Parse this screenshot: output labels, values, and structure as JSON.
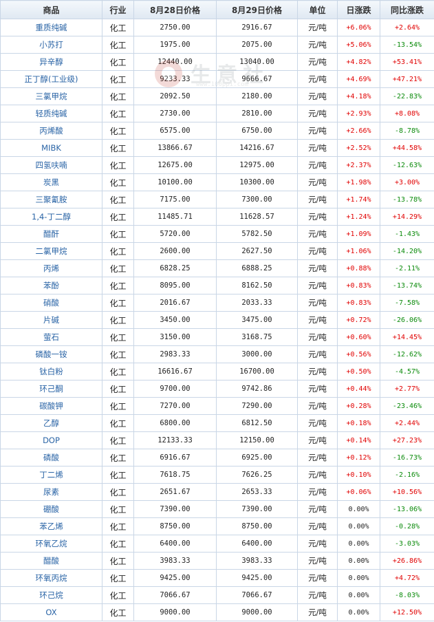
{
  "headers": [
    "商品",
    "行业",
    "8月28日价格",
    "8月29日价格",
    "单位",
    "日涨跌",
    "同比涨跌"
  ],
  "watermark": {
    "text": "生意社",
    "url": "www.100ppi.com"
  },
  "colors": {
    "up": "#e10000",
    "down": "#0a8a0a",
    "name": "#2a64a6",
    "border": "#c9d6e6"
  },
  "rows": [
    {
      "name": "重质纯碱",
      "industry": "化工",
      "p1": "2750.00",
      "p2": "2916.67",
      "unit": "元/吨",
      "daily": "+6.06%",
      "yoy": "+2.64%"
    },
    {
      "name": "小苏打",
      "industry": "化工",
      "p1": "1975.00",
      "p2": "2075.00",
      "unit": "元/吨",
      "daily": "+5.06%",
      "yoy": "-13.54%"
    },
    {
      "name": "异辛醇",
      "industry": "化工",
      "p1": "12440.00",
      "p2": "13040.00",
      "unit": "元/吨",
      "daily": "+4.82%",
      "yoy": "+53.41%"
    },
    {
      "name": "正丁醇(工业级)",
      "industry": "化工",
      "p1": "9233.33",
      "p2": "9666.67",
      "unit": "元/吨",
      "daily": "+4.69%",
      "yoy": "+47.21%"
    },
    {
      "name": "三氯甲烷",
      "industry": "化工",
      "p1": "2092.50",
      "p2": "2180.00",
      "unit": "元/吨",
      "daily": "+4.18%",
      "yoy": "-22.83%"
    },
    {
      "name": "轻质纯碱",
      "industry": "化工",
      "p1": "2730.00",
      "p2": "2810.00",
      "unit": "元/吨",
      "daily": "+2.93%",
      "yoy": "+8.08%"
    },
    {
      "name": "丙烯酸",
      "industry": "化工",
      "p1": "6575.00",
      "p2": "6750.00",
      "unit": "元/吨",
      "daily": "+2.66%",
      "yoy": "-8.78%"
    },
    {
      "name": "MIBK",
      "industry": "化工",
      "p1": "13866.67",
      "p2": "14216.67",
      "unit": "元/吨",
      "daily": "+2.52%",
      "yoy": "+44.58%"
    },
    {
      "name": "四氢呋喃",
      "industry": "化工",
      "p1": "12675.00",
      "p2": "12975.00",
      "unit": "元/吨",
      "daily": "+2.37%",
      "yoy": "-12.63%"
    },
    {
      "name": "炭黑",
      "industry": "化工",
      "p1": "10100.00",
      "p2": "10300.00",
      "unit": "元/吨",
      "daily": "+1.98%",
      "yoy": "+3.00%"
    },
    {
      "name": "三聚氰胺",
      "industry": "化工",
      "p1": "7175.00",
      "p2": "7300.00",
      "unit": "元/吨",
      "daily": "+1.74%",
      "yoy": "-13.78%"
    },
    {
      "name": "1,4-丁二醇",
      "industry": "化工",
      "p1": "11485.71",
      "p2": "11628.57",
      "unit": "元/吨",
      "daily": "+1.24%",
      "yoy": "+14.29%"
    },
    {
      "name": "醋酐",
      "industry": "化工",
      "p1": "5720.00",
      "p2": "5782.50",
      "unit": "元/吨",
      "daily": "+1.09%",
      "yoy": "-1.43%"
    },
    {
      "name": "二氯甲烷",
      "industry": "化工",
      "p1": "2600.00",
      "p2": "2627.50",
      "unit": "元/吨",
      "daily": "+1.06%",
      "yoy": "-14.20%"
    },
    {
      "name": "丙烯",
      "industry": "化工",
      "p1": "6828.25",
      "p2": "6888.25",
      "unit": "元/吨",
      "daily": "+0.88%",
      "yoy": "-2.11%"
    },
    {
      "name": "苯酚",
      "industry": "化工",
      "p1": "8095.00",
      "p2": "8162.50",
      "unit": "元/吨",
      "daily": "+0.83%",
      "yoy": "-13.74%"
    },
    {
      "name": "硝酸",
      "industry": "化工",
      "p1": "2016.67",
      "p2": "2033.33",
      "unit": "元/吨",
      "daily": "+0.83%",
      "yoy": "-7.58%"
    },
    {
      "name": "片碱",
      "industry": "化工",
      "p1": "3450.00",
      "p2": "3475.00",
      "unit": "元/吨",
      "daily": "+0.72%",
      "yoy": "-26.06%"
    },
    {
      "name": "萤石",
      "industry": "化工",
      "p1": "3150.00",
      "p2": "3168.75",
      "unit": "元/吨",
      "daily": "+0.60%",
      "yoy": "+14.45%"
    },
    {
      "name": "磷酸一铵",
      "industry": "化工",
      "p1": "2983.33",
      "p2": "3000.00",
      "unit": "元/吨",
      "daily": "+0.56%",
      "yoy": "-12.62%"
    },
    {
      "name": "钛白粉",
      "industry": "化工",
      "p1": "16616.67",
      "p2": "16700.00",
      "unit": "元/吨",
      "daily": "+0.50%",
      "yoy": "-4.57%"
    },
    {
      "name": "环己酮",
      "industry": "化工",
      "p1": "9700.00",
      "p2": "9742.86",
      "unit": "元/吨",
      "daily": "+0.44%",
      "yoy": "+2.77%"
    },
    {
      "name": "碳酸钾",
      "industry": "化工",
      "p1": "7270.00",
      "p2": "7290.00",
      "unit": "元/吨",
      "daily": "+0.28%",
      "yoy": "-23.46%"
    },
    {
      "name": "乙醇",
      "industry": "化工",
      "p1": "6800.00",
      "p2": "6812.50",
      "unit": "元/吨",
      "daily": "+0.18%",
      "yoy": "+2.44%"
    },
    {
      "name": "DOP",
      "industry": "化工",
      "p1": "12133.33",
      "p2": "12150.00",
      "unit": "元/吨",
      "daily": "+0.14%",
      "yoy": "+27.23%"
    },
    {
      "name": "磷酸",
      "industry": "化工",
      "p1": "6916.67",
      "p2": "6925.00",
      "unit": "元/吨",
      "daily": "+0.12%",
      "yoy": "-16.73%"
    },
    {
      "name": "丁二烯",
      "industry": "化工",
      "p1": "7618.75",
      "p2": "7626.25",
      "unit": "元/吨",
      "daily": "+0.10%",
      "yoy": "-2.16%"
    },
    {
      "name": "尿素",
      "industry": "化工",
      "p1": "2651.67",
      "p2": "2653.33",
      "unit": "元/吨",
      "daily": "+0.06%",
      "yoy": "+10.56%"
    },
    {
      "name": "硼酸",
      "industry": "化工",
      "p1": "7390.00",
      "p2": "7390.00",
      "unit": "元/吨",
      "daily": "0.00%",
      "yoy": "-13.06%"
    },
    {
      "name": "苯乙烯",
      "industry": "化工",
      "p1": "8750.00",
      "p2": "8750.00",
      "unit": "元/吨",
      "daily": "0.00%",
      "yoy": "-0.28%"
    },
    {
      "name": "环氧乙烷",
      "industry": "化工",
      "p1": "6400.00",
      "p2": "6400.00",
      "unit": "元/吨",
      "daily": "0.00%",
      "yoy": "-3.03%"
    },
    {
      "name": "醋酸",
      "industry": "化工",
      "p1": "3983.33",
      "p2": "3983.33",
      "unit": "元/吨",
      "daily": "0.00%",
      "yoy": "+26.86%"
    },
    {
      "name": "环氧丙烷",
      "industry": "化工",
      "p1": "9425.00",
      "p2": "9425.00",
      "unit": "元/吨",
      "daily": "0.00%",
      "yoy": "+4.72%"
    },
    {
      "name": "环己烷",
      "industry": "化工",
      "p1": "7066.67",
      "p2": "7066.67",
      "unit": "元/吨",
      "daily": "0.00%",
      "yoy": "-8.03%"
    },
    {
      "name": "OX",
      "industry": "化工",
      "p1": "9000.00",
      "p2": "9000.00",
      "unit": "元/吨",
      "daily": "0.00%",
      "yoy": "+12.50%"
    }
  ]
}
